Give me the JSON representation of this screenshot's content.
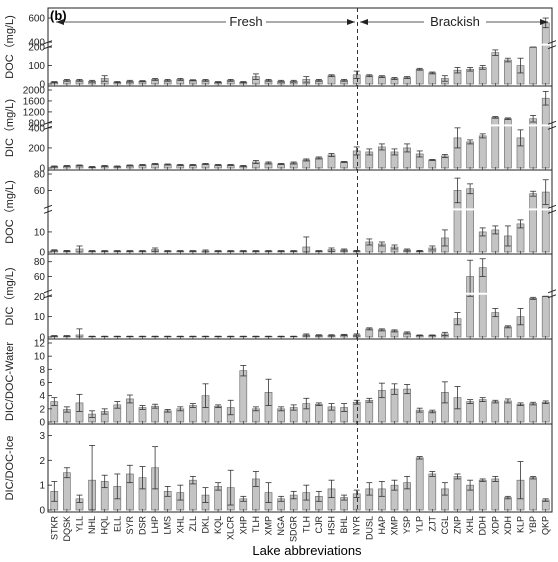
{
  "figure": {
    "panel_label": "(b)",
    "xlabel": "Lake abbreviations",
    "regions": [
      {
        "label": "Fresh"
      },
      {
        "label": "Brackish"
      }
    ]
  },
  "chart_data": [
    {
      "type": "bar",
      "ylabel": "DOC（mg/L)",
      "ylim": [
        0,
        650
      ],
      "axis_break": [
        200,
        400
      ],
      "yticks": [
        "0",
        "100",
        "200",
        "400",
        "600"
      ],
      "categories": [
        "STKR",
        "DQSK",
        "YLL",
        "NHL",
        "HQL",
        "ELL",
        "SYR",
        "DSR",
        "LHP",
        "LMS",
        "XHL",
        "ZLL",
        "DKL",
        "KQL",
        "XLCR",
        "XHP",
        "TLH",
        "XMP",
        "NGA",
        "SDGR",
        "TLH",
        "CJR",
        "HSH",
        "BHL",
        "NYR",
        "DUSL",
        "HAP",
        "XMP",
        "YSP",
        "YLP",
        "ZJT",
        "CGL",
        "ZNP",
        "XHL",
        "DDH",
        "XDP",
        "XDH",
        "KLP",
        "YBP",
        "QKP"
      ],
      "values": [
        10,
        20,
        20,
        15,
        30,
        10,
        15,
        15,
        25,
        20,
        25,
        20,
        20,
        10,
        20,
        10,
        40,
        20,
        15,
        15,
        25,
        20,
        45,
        20,
        50,
        45,
        40,
        30,
        35,
        80,
        60,
        30,
        75,
        80,
        90,
        170,
        130,
        100,
        300,
        560
      ],
      "errors": [
        3,
        5,
        5,
        5,
        15,
        3,
        5,
        3,
        5,
        5,
        5,
        3,
        5,
        3,
        5,
        3,
        15,
        5,
        5,
        5,
        15,
        5,
        5,
        5,
        20,
        5,
        5,
        5,
        5,
        5,
        5,
        15,
        15,
        10,
        10,
        15,
        10,
        40,
        60,
        40
      ]
    },
    {
      "type": "bar",
      "ylabel": "DIC（mg/L)",
      "ylim": [
        0,
        2000
      ],
      "axis_break": [
        400,
        800
      ],
      "yticks": [
        "0",
        "200",
        "400",
        "800",
        "1200",
        "1600",
        "2000"
      ],
      "categories": [
        "STKR",
        "DQSK",
        "YLL",
        "NHL",
        "HQL",
        "ELL",
        "SYR",
        "DSR",
        "LHP",
        "LMS",
        "XHL",
        "ZLL",
        "DKL",
        "KQL",
        "XLCR",
        "XHP",
        "TLH",
        "XMP",
        "NGA",
        "SDGR",
        "TLH",
        "CJR",
        "HSH",
        "BHL",
        "NYR",
        "DUSL",
        "HAP",
        "XMP",
        "YSP",
        "YLP",
        "ZJT",
        "CGL",
        "ZNP",
        "XHL",
        "DDH",
        "XDP",
        "XDH",
        "KLP",
        "YBP",
        "QKP"
      ],
      "values": [
        15,
        20,
        25,
        10,
        20,
        15,
        25,
        30,
        40,
        35,
        30,
        30,
        40,
        30,
        30,
        20,
        60,
        50,
        40,
        50,
        80,
        100,
        130,
        60,
        170,
        160,
        210,
        160,
        200,
        140,
        80,
        120,
        300,
        260,
        320,
        1000,
        950,
        300,
        950,
        1700
      ],
      "errors": [
        5,
        5,
        5,
        5,
        5,
        5,
        5,
        5,
        5,
        5,
        5,
        5,
        5,
        5,
        5,
        5,
        15,
        10,
        5,
        10,
        10,
        10,
        15,
        5,
        40,
        30,
        30,
        30,
        40,
        30,
        5,
        15,
        100,
        20,
        20,
        30,
        30,
        80,
        120,
        250
      ]
    },
    {
      "type": "bar",
      "ylabel": "DOC（mg/L)",
      "ylim": [
        0,
        80
      ],
      "axis_break": [
        20,
        40
      ],
      "yticks": [
        "0",
        "10",
        "60",
        "80"
      ],
      "categories": [
        "STKR",
        "DQSK",
        "YLL",
        "NHL",
        "HQL",
        "ELL",
        "SYR",
        "DSR",
        "LHP",
        "LMS",
        "XHL",
        "ZLL",
        "DKL",
        "KQL",
        "XLCR",
        "XHP",
        "TLH",
        "XMP",
        "NGA",
        "SDGR",
        "TLH",
        "CJR",
        "HSH",
        "BHL",
        "NYR",
        "DUSL",
        "HAP",
        "XMP",
        "YSP",
        "YLP",
        "ZJT",
        "CGL",
        "ZNP",
        "XHL",
        "DDH",
        "XDP",
        "XDH",
        "KLP",
        "YBP",
        "QKP"
      ],
      "values": [
        0.8,
        0.5,
        1.5,
        0.5,
        0.5,
        0.5,
        0.5,
        0.5,
        1.2,
        0.5,
        0.5,
        0.5,
        0.5,
        0.5,
        0.5,
        0.5,
        0.5,
        0.5,
        0.5,
        0.5,
        2.5,
        0.5,
        1.2,
        1,
        0.5,
        5,
        4,
        2.5,
        1,
        0.5,
        2,
        7,
        60,
        62,
        10,
        11,
        8,
        14,
        56,
        58
      ],
      "errors": [
        0.3,
        0.3,
        1.5,
        0.2,
        0.2,
        0.2,
        0.2,
        0.2,
        0.8,
        0.2,
        0.2,
        0.2,
        0.5,
        0.2,
        0.2,
        0.2,
        0.2,
        0.2,
        0.2,
        0.2,
        5,
        0.2,
        0.8,
        0.5,
        0.3,
        1.5,
        1,
        1,
        0.5,
        0.3,
        1,
        4,
        15,
        6,
        2,
        2,
        5,
        2,
        3,
        15
      ]
    },
    {
      "type": "bar",
      "ylabel": "DIC（mg/L)",
      "ylim": [
        0,
        85
      ],
      "axis_break": [
        20,
        40
      ],
      "yticks": [
        "0",
        "10",
        "20",
        "60",
        "80"
      ],
      "categories": [
        "STKR",
        "DQSK",
        "YLL",
        "NHL",
        "HQL",
        "ELL",
        "SYR",
        "DSR",
        "LHP",
        "LMS",
        "XHL",
        "ZLL",
        "DKL",
        "KQL",
        "XLCR",
        "XHP",
        "TLH",
        "XMP",
        "NGA",
        "SDGR",
        "TLH",
        "CJR",
        "HSH",
        "BHL",
        "NYR",
        "DUSL",
        "HAP",
        "XMP",
        "YSP",
        "YLP",
        "ZJT",
        "CGL",
        "ZNP",
        "XHL",
        "DDH",
        "XDP",
        "XDH",
        "KLP",
        "YBP",
        "QKP"
      ],
      "values": [
        0.5,
        0.5,
        1,
        0.3,
        0.3,
        0.3,
        0.3,
        0.3,
        0.3,
        0.3,
        0.3,
        0.3,
        0.3,
        0.3,
        0.3,
        0.3,
        0.3,
        0.3,
        0.3,
        0.3,
        1,
        0.8,
        0.8,
        1,
        1,
        4,
        3.5,
        3,
        2,
        0.8,
        0.8,
        1.5,
        9,
        60,
        72,
        12,
        5,
        10,
        19,
        22
      ],
      "errors": [
        0.2,
        0.2,
        3,
        0.1,
        0.1,
        0.1,
        0.1,
        0.1,
        0.1,
        0.1,
        0.1,
        0.1,
        0.1,
        0.1,
        0.1,
        0.1,
        0.1,
        0.1,
        0.1,
        0.1,
        0.5,
        0.3,
        0.3,
        0.3,
        0.5,
        0.5,
        0.5,
        0.5,
        0.5,
        0.2,
        0.2,
        0.8,
        3,
        22,
        12,
        2,
        0.5,
        4,
        0.5,
        1
      ]
    },
    {
      "type": "bar",
      "ylabel": "DIC/DOC-Water",
      "ylim": [
        0,
        12
      ],
      "yticks": [
        "0",
        "2",
        "4",
        "6",
        "8",
        "10",
        "12"
      ],
      "categories": [
        "STKR",
        "DQSK",
        "YLL",
        "NHL",
        "HQL",
        "ELL",
        "SYR",
        "DSR",
        "LHP",
        "LMS",
        "XHL",
        "ZLL",
        "DKL",
        "KQL",
        "XLCR",
        "XHP",
        "TLH",
        "XMP",
        "NGA",
        "SDGR",
        "TLH",
        "CJR",
        "HSH",
        "BHL",
        "NYR",
        "DUSL",
        "HAP",
        "XMP",
        "YSP",
        "YLP",
        "ZJT",
        "CGL",
        "ZNP",
        "XHL",
        "DDH",
        "XDP",
        "XDH",
        "KLP",
        "YBP",
        "QKP"
      ],
      "values": [
        3.1,
        1.9,
        2.9,
        1.2,
        1.6,
        2.6,
        3.5,
        2.2,
        2.4,
        1.7,
        2.0,
        2.5,
        4.0,
        2.4,
        2.2,
        7.8,
        2.0,
        4.5,
        2.0,
        2.2,
        2.8,
        2.7,
        2.3,
        2.2,
        3.0,
        3.3,
        4.8,
        5.0,
        5.0,
        1.8,
        1.6,
        4.5,
        3.7,
        3.1,
        3.4,
        3.1,
        3.2,
        2.7,
        2.8,
        3.0
      ],
      "errors": [
        0.6,
        0.4,
        1.3,
        0.5,
        0.4,
        0.5,
        0.6,
        0.3,
        0.3,
        0.2,
        0.3,
        0.3,
        1.8,
        0.2,
        1.1,
        0.8,
        0.3,
        2.0,
        0.3,
        0.4,
        0.8,
        0.2,
        0.5,
        0.6,
        0.3,
        0.3,
        1.1,
        0.8,
        0.7,
        0.3,
        0.2,
        1.6,
        1.7,
        0.3,
        0.3,
        0.2,
        0.3,
        0.2,
        0.2,
        0.2
      ]
    },
    {
      "type": "bar",
      "ylabel": "DIC/DOC-Ice",
      "ylim": [
        0,
        3.3
      ],
      "yticks": [
        "0",
        "1",
        "2",
        "3"
      ],
      "categories": [
        "STKR",
        "DQSK",
        "YLL",
        "NHL",
        "HQL",
        "ELL",
        "SYR",
        "DSR",
        "LHP",
        "LMS",
        "XHL",
        "ZLL",
        "DKL",
        "KQL",
        "XLCR",
        "XHP",
        "TLH",
        "XMP",
        "NGA",
        "SDGR",
        "TLH",
        "CJR",
        "HSH",
        "BHL",
        "NYR",
        "DUSL",
        "HAP",
        "XMP",
        "YSP",
        "YLP",
        "ZJT",
        "CGL",
        "ZNP",
        "XHL",
        "DDH",
        "XDP",
        "XDH",
        "KLP",
        "YBP",
        "QKP"
      ],
      "values": [
        0.75,
        1.5,
        0.45,
        1.2,
        1.15,
        0.95,
        1.45,
        1.3,
        1.7,
        0.75,
        0.7,
        1.2,
        0.6,
        0.95,
        0.9,
        0.45,
        1.25,
        0.7,
        0.45,
        0.6,
        0.7,
        0.55,
        0.85,
        0.5,
        0.65,
        0.85,
        0.85,
        1.0,
        1.1,
        2.1,
        1.45,
        0.85,
        1.35,
        1.0,
        1.2,
        1.25,
        0.5,
        1.2,
        1.3,
        0.4
      ],
      "errors": [
        0.4,
        0.2,
        0.15,
        1.4,
        0.25,
        0.5,
        0.35,
        0.45,
        0.85,
        0.2,
        0.3,
        0.15,
        0.3,
        0.15,
        0.7,
        0.1,
        0.3,
        0.4,
        0.1,
        0.15,
        0.3,
        0.2,
        0.35,
        0.1,
        0.15,
        0.25,
        0.3,
        0.2,
        0.25,
        0.05,
        0.1,
        0.25,
        0.1,
        0.2,
        0.05,
        0.1,
        0.05,
        0.75,
        0.05,
        0.05
      ]
    }
  ]
}
